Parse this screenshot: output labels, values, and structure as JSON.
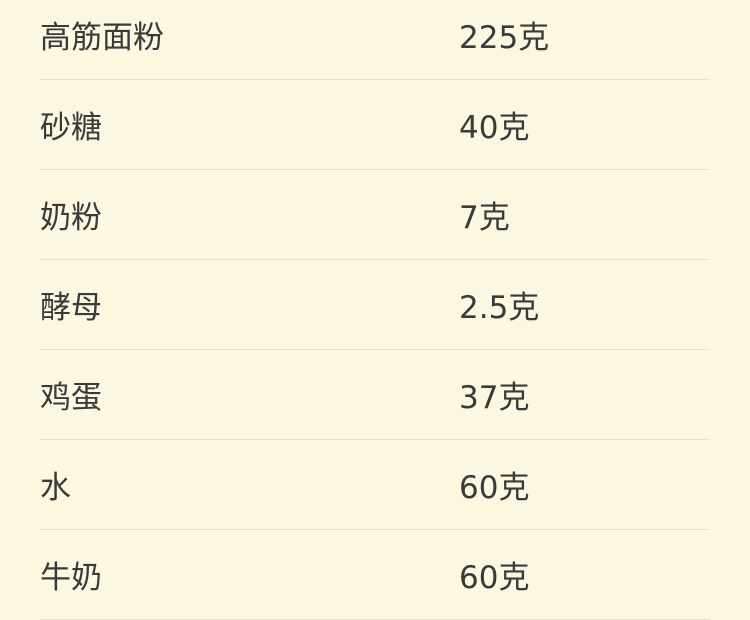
{
  "ingredients": [
    {
      "name": "高筋面粉",
      "amount": "225克"
    },
    {
      "name": "砂糖",
      "amount": "40克"
    },
    {
      "name": "奶粉",
      "amount": "7克"
    },
    {
      "name": "酵母",
      "amount": "2.5克"
    },
    {
      "name": "鸡蛋",
      "amount": "37克"
    },
    {
      "name": "水",
      "amount": "60克"
    },
    {
      "name": "牛奶",
      "amount": "60克"
    }
  ]
}
